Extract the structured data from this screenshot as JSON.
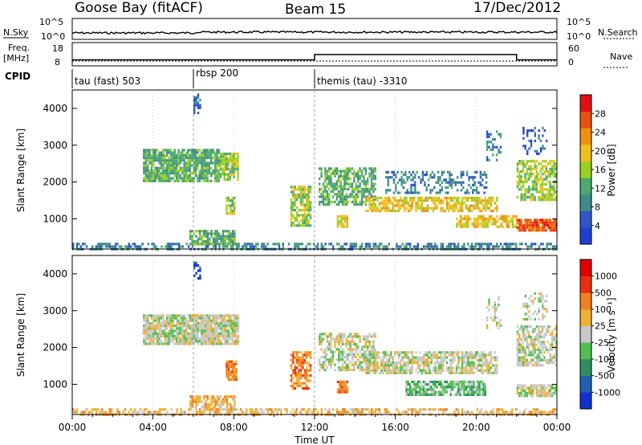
{
  "header": {
    "station": "Goose Bay (fitACF)",
    "beam": "Beam 15",
    "date": "17/Dec/2012"
  },
  "nsky_panel": {
    "left_label": "N.Sky",
    "right_label": "N.Search",
    "left_ticks": [
      "10^5",
      "10^0"
    ],
    "right_ticks": [
      "10^5",
      "10^0"
    ]
  },
  "freq_panel": {
    "left_label_1": "Freq.",
    "left_label_2": "[MHz]",
    "left_ticks": [
      "18",
      "8"
    ],
    "right_label": "Nave",
    "right_ticks": [
      "60",
      "0"
    ]
  },
  "cpid": {
    "label": "CPID",
    "modes": [
      {
        "name": "tau (fast) 503",
        "start_hour": 0
      },
      {
        "name": "rbsp 200",
        "start_hour": 6
      },
      {
        "name": "themis (tau) -3310",
        "start_hour": 12
      }
    ]
  },
  "x_axis": {
    "label": "Time UT",
    "ticks": [
      "00:00",
      "04:00",
      "08:00",
      "12:00",
      "16:00",
      "20:00",
      "00:00"
    ],
    "range_hours": [
      0,
      24
    ]
  },
  "power_panel": {
    "ylabel": "Slant Range [km]",
    "yticks": [
      "4000",
      "3000",
      "2000",
      "1000"
    ],
    "colorbar_label": "Power [dB]",
    "colorbar_ticks": [
      "28",
      "24",
      "20",
      "16",
      "12",
      "8",
      "4"
    ],
    "colors": [
      "#1f3fd0",
      "#2f55c8",
      "#3f8a8a",
      "#4aa870",
      "#9ad020",
      "#f0c020",
      "#f09010",
      "#e85010",
      "#e01010"
    ]
  },
  "velocity_panel": {
    "ylabel": "Slant Range [km]",
    "yticks": [
      "4000",
      "3000",
      "2000",
      "1000"
    ],
    "colorbar_label": "Velocity  [m s⁻¹]",
    "colorbar_ticks": [
      "1000",
      "500",
      "100",
      "25",
      "-25",
      "-100",
      "-500",
      "-1000"
    ],
    "colors": [
      "#1030d0",
      "#2060b0",
      "#2a9060",
      "#50c050",
      "#c8c8c8",
      "#f0b030",
      "#f08020",
      "#e83010",
      "#e00000"
    ]
  },
  "chart_data": {
    "type": "heatmap",
    "title": "Goose Bay (fitACF)  Beam 15  17/Dec/2012",
    "xlabel": "Time UT",
    "ylabel": "Slant Range [km]",
    "xlim_hours": [
      0,
      24
    ],
    "ylim_km": [
      180,
      4500
    ],
    "grid": true,
    "frequency_mhz": [
      {
        "start_hour": 0,
        "end_hour": 6,
        "value": 10.5
      },
      {
        "start_hour": 6,
        "end_hour": 12,
        "value": 10.5
      },
      {
        "start_hour": 12,
        "end_hour": 22,
        "value": 13.5
      },
      {
        "start_hour": 22,
        "end_hour": 24,
        "value": 10.5
      }
    ],
    "nave": [
      {
        "start_hour": 0,
        "end_hour": 6,
        "value": 15
      },
      {
        "start_hour": 6,
        "end_hour": 12,
        "value": 15
      },
      {
        "start_hour": 12,
        "end_hour": 22,
        "value": 15
      },
      {
        "start_hour": 22,
        "end_hour": 24,
        "value": 15
      }
    ],
    "power_regions": [
      {
        "t0": 0.0,
        "t1": 24.0,
        "r0": 180,
        "r1": 350,
        "level": 2,
        "density": 0.55
      },
      {
        "t0": 5.8,
        "t1": 8.0,
        "r0": 350,
        "r1": 700,
        "level": 3,
        "density": 0.8
      },
      {
        "t0": 3.5,
        "t1": 7.3,
        "r0": 2000,
        "r1": 2900,
        "level": 3,
        "density": 0.85
      },
      {
        "t0": 7.3,
        "t1": 8.2,
        "r0": 2100,
        "r1": 2800,
        "level": 4,
        "density": 0.8
      },
      {
        "t0": 6.0,
        "t1": 6.3,
        "r0": 3900,
        "r1": 4400,
        "level": 1,
        "density": 0.5
      },
      {
        "t0": 7.6,
        "t1": 8.0,
        "r0": 1150,
        "r1": 1600,
        "level": 4,
        "density": 0.8
      },
      {
        "t0": 10.8,
        "t1": 11.8,
        "r0": 800,
        "r1": 1900,
        "level": 4,
        "density": 0.75
      },
      {
        "t0": 12.2,
        "t1": 15.0,
        "r0": 1400,
        "r1": 2400,
        "level": 3,
        "density": 0.65
      },
      {
        "t0": 13.1,
        "t1": 13.6,
        "r0": 800,
        "r1": 1100,
        "level": 5,
        "density": 0.8
      },
      {
        "t0": 14.5,
        "t1": 21.0,
        "r0": 1200,
        "r1": 1600,
        "level": 5,
        "density": 0.7
      },
      {
        "t0": 15.5,
        "t1": 20.5,
        "r0": 1700,
        "r1": 2300,
        "level": 2,
        "density": 0.4
      },
      {
        "t0": 19.0,
        "t1": 22.0,
        "r0": 800,
        "r1": 1100,
        "level": 5,
        "density": 0.7
      },
      {
        "t0": 20.5,
        "t1": 21.2,
        "r0": 2500,
        "r1": 3400,
        "level": 2,
        "density": 0.3
      },
      {
        "t0": 22.0,
        "t1": 24.0,
        "r0": 700,
        "r1": 1000,
        "level": 7,
        "density": 0.85
      },
      {
        "t0": 22.0,
        "t1": 24.0,
        "r0": 1500,
        "r1": 2600,
        "level": 4,
        "density": 0.7
      },
      {
        "t0": 22.3,
        "t1": 23.5,
        "r0": 2800,
        "r1": 3500,
        "level": 1,
        "density": 0.3
      }
    ],
    "velocity_regions": [
      {
        "t0": 0.0,
        "t1": 24.0,
        "r0": 180,
        "r1": 350,
        "level": 5,
        "density": 0.55
      },
      {
        "t0": 5.8,
        "t1": 8.0,
        "r0": 350,
        "r1": 700,
        "level": 5,
        "density": 0.7
      },
      {
        "t0": 3.5,
        "t1": 8.2,
        "r0": 2100,
        "r1": 2900,
        "level": 4,
        "density": 0.9
      },
      {
        "t0": 6.0,
        "t1": 6.3,
        "r0": 3900,
        "r1": 4400,
        "level": 0,
        "density": 0.4
      },
      {
        "t0": 7.6,
        "t1": 8.1,
        "r0": 1150,
        "r1": 1650,
        "level": 6,
        "density": 0.9
      },
      {
        "t0": 10.8,
        "t1": 11.8,
        "r0": 900,
        "r1": 1900,
        "level": 6,
        "density": 0.7
      },
      {
        "t0": 12.2,
        "t1": 15.0,
        "r0": 1400,
        "r1": 2400,
        "level": 4,
        "density": 0.65
      },
      {
        "t0": 13.1,
        "t1": 13.6,
        "r0": 800,
        "r1": 1100,
        "level": 6,
        "density": 0.85
      },
      {
        "t0": 14.5,
        "t1": 21.0,
        "r0": 1300,
        "r1": 1900,
        "level": 4,
        "density": 0.75
      },
      {
        "t0": 16.5,
        "t1": 20.5,
        "r0": 700,
        "r1": 1100,
        "level": 3,
        "density": 0.8
      },
      {
        "t0": 20.5,
        "t1": 21.2,
        "r0": 2500,
        "r1": 3400,
        "level": 4,
        "density": 0.3
      },
      {
        "t0": 22.0,
        "t1": 24.0,
        "r0": 700,
        "r1": 1000,
        "level": 4,
        "density": 0.8
      },
      {
        "t0": 22.0,
        "t1": 24.0,
        "r0": 1500,
        "r1": 2600,
        "level": 4,
        "density": 0.7
      },
      {
        "t0": 22.3,
        "t1": 23.5,
        "r0": 2800,
        "r1": 3500,
        "level": 4,
        "density": 0.3
      }
    ]
  }
}
